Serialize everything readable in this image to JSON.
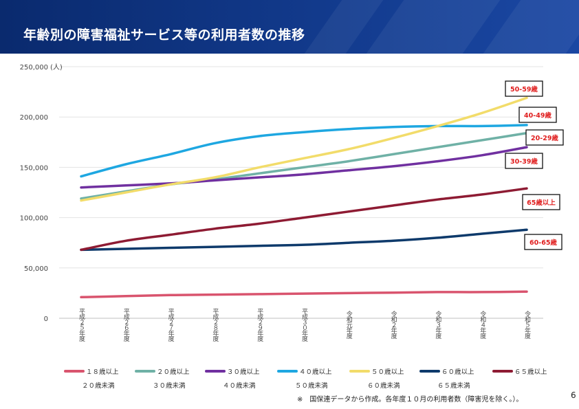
{
  "header": {
    "title": "年齢別の障害福祉サービス等の利用者数の推移"
  },
  "footnote": "※　国保連データから作成。各年度１０月の利用者数（障害児を除く。）。",
  "page_number": "6",
  "colors": {
    "header_bg": "#0a2a6e",
    "grid": "#e3e3e3",
    "annotation_text": "#e01e1e"
  },
  "chart_data": {
    "type": "line",
    "y_unit": "(人)",
    "ylim": [
      0,
      250000
    ],
    "yticks": [
      0,
      50000,
      100000,
      150000,
      200000,
      250000
    ],
    "ytick_labels": [
      "0",
      "50,000",
      "100,000",
      "150,000",
      "200,000",
      "250,000"
    ],
    "grid": true,
    "legend_position": "bottom",
    "categories": [
      "平成２５年度",
      "平成２６年度",
      "平成２７年度",
      "平成２８年度",
      "平成２９年度",
      "平成３０年度",
      "令和元年度",
      "令和２年度",
      "令和３年度",
      "令和４年度",
      "令和５年度"
    ],
    "series": [
      {
        "name_line1": "１８歳以上",
        "name_line2": "２０歳未満",
        "annotation": "",
        "color": "#d9546e",
        "values": [
          21000,
          22000,
          23000,
          23500,
          24000,
          24500,
          25000,
          25500,
          26000,
          26000,
          26500
        ]
      },
      {
        "name_line1": "２０歳以上",
        "name_line2": "３０歳未満",
        "annotation": "20-29歳",
        "color": "#6fb1a6",
        "values": [
          119000,
          126000,
          133000,
          138000,
          144000,
          150000,
          156000,
          163000,
          170000,
          177000,
          184000
        ]
      },
      {
        "name_line1": "３０歳以上",
        "name_line2": "４０歳未満",
        "annotation": "30-39歳",
        "color": "#7030a0",
        "values": [
          130000,
          132000,
          134000,
          137000,
          140000,
          143000,
          147000,
          151000,
          156000,
          162000,
          170000
        ]
      },
      {
        "name_line1": "４０歳以上",
        "name_line2": "５０歳未満",
        "annotation": "40-49歳",
        "color": "#1ea7e1",
        "values": [
          141000,
          153000,
          163000,
          174000,
          181000,
          185000,
          188000,
          190000,
          191000,
          191000,
          192000
        ]
      },
      {
        "name_line1": "５０歳以上",
        "name_line2": "６０歳未満",
        "annotation": "50-59歳",
        "color": "#f2dc6a",
        "values": [
          117000,
          125000,
          133000,
          140000,
          150000,
          159000,
          168000,
          179000,
          191000,
          204000,
          219000
        ]
      },
      {
        "name_line1": "６０歳以上",
        "name_line2": "６５歳未満",
        "annotation": "60-65歳",
        "color": "#0e3a6b",
        "values": [
          68000,
          69000,
          70000,
          71000,
          72000,
          73000,
          75000,
          77000,
          80000,
          84000,
          88000
        ]
      },
      {
        "name_line1": "６５歳以上",
        "name_line2": "",
        "annotation": "65歳以上",
        "color": "#8e1b33",
        "values": [
          68000,
          77000,
          83000,
          89000,
          94000,
          100000,
          106000,
          112000,
          118000,
          123000,
          129000
        ]
      }
    ]
  }
}
